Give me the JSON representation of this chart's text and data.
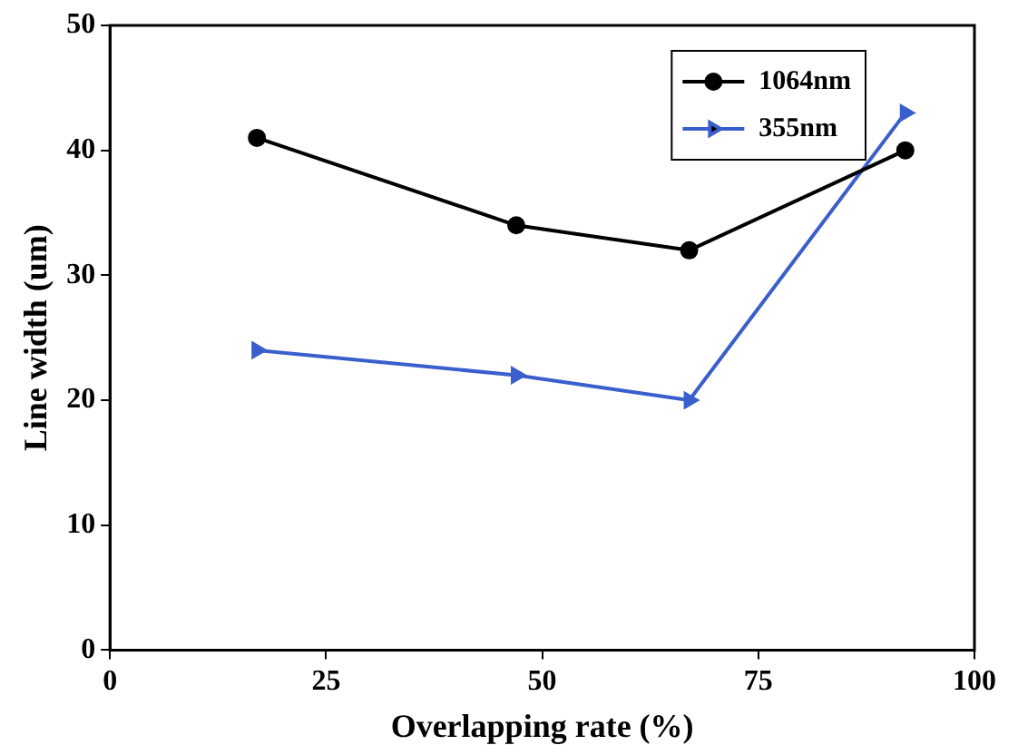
{
  "chart_data": {
    "type": "line",
    "xlabel": "Overlapping rate (%)",
    "ylabel": "Line width (um)",
    "xlim": [
      0,
      100
    ],
    "xticks": [
      0,
      25,
      50,
      75,
      100
    ],
    "ylim": [
      0,
      50
    ],
    "yticks": [
      0,
      10,
      20,
      30,
      40,
      50
    ],
    "grid": false,
    "legend": "top right",
    "line_style": "solid",
    "series": [
      {
        "name": "1064nm",
        "color": "#000000",
        "marker": "circle",
        "x": [
          17,
          47,
          67,
          92
        ],
        "values": [
          41,
          34,
          32,
          40
        ]
      },
      {
        "name": "355nm",
        "color": "#3a5fcd",
        "marker": "triangle",
        "x": [
          17,
          47,
          67,
          92
        ],
        "values": [
          24,
          22,
          20,
          43
        ]
      }
    ]
  }
}
